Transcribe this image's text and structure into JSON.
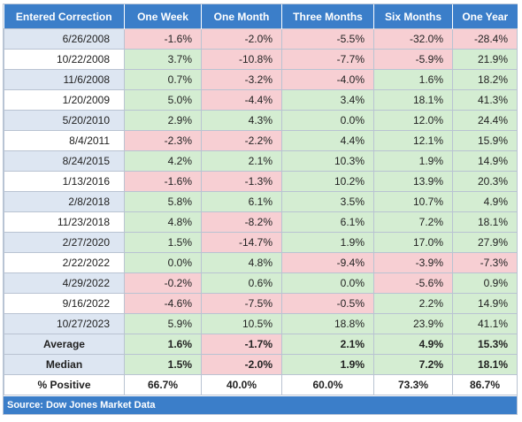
{
  "table": {
    "headers": [
      "Entered Correction",
      "One Week",
      "One Month",
      "Three Months",
      "Six Months",
      "One Year"
    ],
    "rows": [
      {
        "date": "6/26/2008",
        "values": [
          "-1.6%",
          "-2.0%",
          "-5.5%",
          "-32.0%",
          "-28.4%"
        ]
      },
      {
        "date": "10/22/2008",
        "values": [
          "3.7%",
          "-10.8%",
          "-7.7%",
          "-5.9%",
          "21.9%"
        ]
      },
      {
        "date": "11/6/2008",
        "values": [
          "0.7%",
          "-3.2%",
          "-4.0%",
          "1.6%",
          "18.2%"
        ]
      },
      {
        "date": "1/20/2009",
        "values": [
          "5.0%",
          "-4.4%",
          "3.4%",
          "18.1%",
          "41.3%"
        ]
      },
      {
        "date": "5/20/2010",
        "values": [
          "2.9%",
          "4.3%",
          "0.0%",
          "12.0%",
          "24.4%"
        ]
      },
      {
        "date": "8/4/2011",
        "values": [
          "-2.3%",
          "-2.2%",
          "4.4%",
          "12.1%",
          "15.9%"
        ]
      },
      {
        "date": "8/24/2015",
        "values": [
          "4.2%",
          "2.1%",
          "10.3%",
          "1.9%",
          "14.9%"
        ]
      },
      {
        "date": "1/13/2016",
        "values": [
          "-1.6%",
          "-1.3%",
          "10.2%",
          "13.9%",
          "20.3%"
        ]
      },
      {
        "date": "2/8/2018",
        "values": [
          "5.8%",
          "6.1%",
          "3.5%",
          "10.7%",
          "4.9%"
        ]
      },
      {
        "date": "11/23/2018",
        "values": [
          "4.8%",
          "-8.2%",
          "6.1%",
          "7.2%",
          "18.1%"
        ]
      },
      {
        "date": "2/27/2020",
        "values": [
          "1.5%",
          "-14.7%",
          "1.9%",
          "17.0%",
          "27.9%"
        ]
      },
      {
        "date": "2/22/2022",
        "values": [
          "0.0%",
          "4.8%",
          "-9.4%",
          "-3.9%",
          "-7.3%"
        ]
      },
      {
        "date": "4/29/2022",
        "values": [
          "-0.2%",
          "0.6%",
          "0.0%",
          "-5.6%",
          "0.9%"
        ]
      },
      {
        "date": "9/16/2022",
        "values": [
          "-4.6%",
          "-7.5%",
          "-0.5%",
          "2.2%",
          "14.9%"
        ]
      },
      {
        "date": "10/27/2023",
        "values": [
          "5.9%",
          "10.5%",
          "18.8%",
          "23.9%",
          "41.1%"
        ]
      }
    ],
    "summary": [
      {
        "label": "Average",
        "values": [
          "1.6%",
          "-1.7%",
          "2.1%",
          "4.9%",
          "15.3%"
        ]
      },
      {
        "label": "Median",
        "values": [
          "1.5%",
          "-2.0%",
          "1.9%",
          "7.2%",
          "18.1%"
        ]
      }
    ],
    "positive": {
      "label": "% Positive",
      "values": [
        "66.7%",
        "40.0%",
        "60.0%",
        "73.3%",
        "86.7%"
      ]
    }
  },
  "source": "Source: Dow Jones Market Data",
  "colors": {
    "header": "#3b7ec9",
    "positive": "#d4edd2",
    "negative": "#f7cfd3",
    "date_alt": "#dde6f2"
  }
}
